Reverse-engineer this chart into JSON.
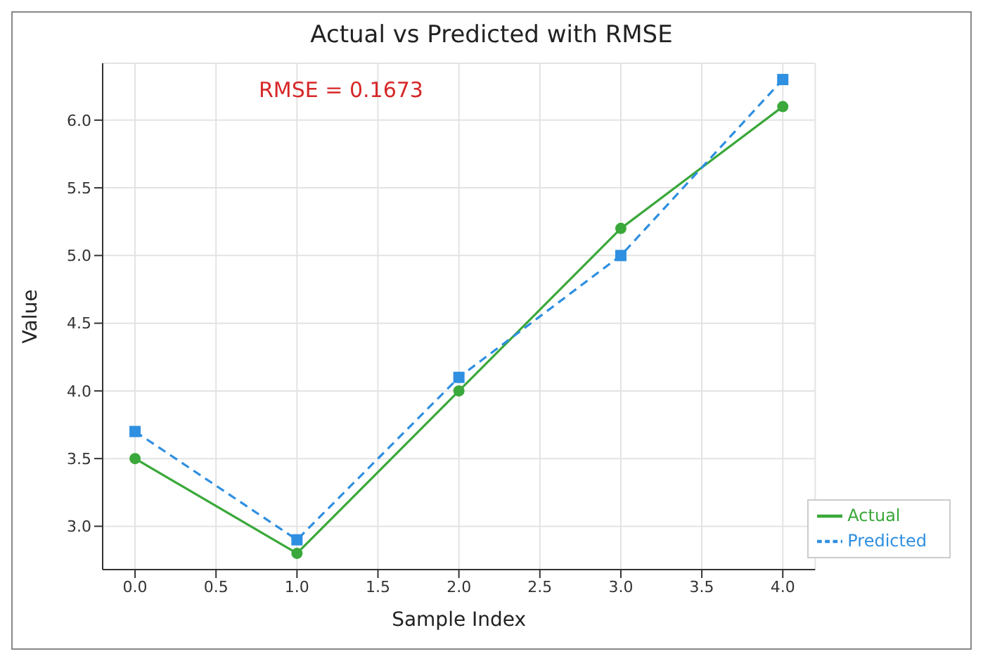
{
  "chart_data": {
    "type": "line",
    "title": "Actual vs Predicted with RMSE",
    "xlabel": "Sample Index",
    "ylabel": "Value",
    "annotations": [
      "RMSE = 0.1673"
    ],
    "x": [
      0,
      1,
      2,
      3,
      4
    ],
    "series": [
      {
        "name": "Actual",
        "color": "#3aa83a",
        "values": [
          3.5,
          2.8,
          4.0,
          5.2,
          6.1
        ],
        "marker": "circle",
        "line_style": "solid"
      },
      {
        "name": "Predicted",
        "color": "#2f8fe0",
        "values": [
          3.7,
          2.9,
          4.1,
          5.0,
          6.3
        ],
        "marker": "square",
        "line_style": "dashed"
      }
    ],
    "xlim": [
      -0.2,
      4.2
    ],
    "xticks": [
      {
        "value": 0,
        "label": "0.0"
      },
      {
        "value": 0.5,
        "label": "0.5"
      },
      {
        "value": 1,
        "label": "1.0"
      },
      {
        "value": 1.5,
        "label": "1.5"
      },
      {
        "value": 2,
        "label": "2.0"
      },
      {
        "value": 2.5,
        "label": "2.5"
      },
      {
        "value": 3,
        "label": "3.0"
      },
      {
        "value": 3.5,
        "label": "3.5"
      },
      {
        "value": 4,
        "label": "4.0"
      }
    ],
    "ylim": [
      2.68,
      6.42
    ],
    "yticks": [
      {
        "value": 3,
        "label": "3.0"
      },
      {
        "value": 3.5,
        "label": "3.5"
      },
      {
        "value": 4,
        "label": "4.0"
      },
      {
        "value": 4.5,
        "label": "4.5"
      },
      {
        "value": 5,
        "label": "5.0"
      },
      {
        "value": 5.5,
        "label": "5.5"
      },
      {
        "value": 6,
        "label": "6.0"
      }
    ],
    "grid": true,
    "legend": "bottom right"
  }
}
